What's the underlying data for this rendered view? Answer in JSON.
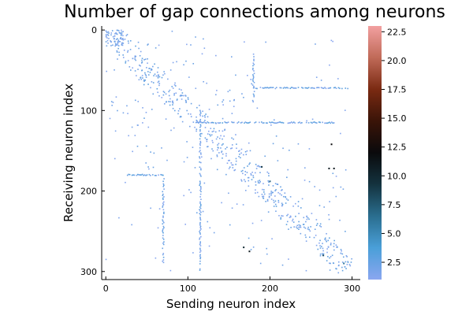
{
  "chart_data": {
    "type": "heatmap",
    "title": "Number of gap connections among neurons",
    "xlabel": "Sending neuron index",
    "ylabel": "Receiving neuron index",
    "xlim": [
      -5,
      310
    ],
    "ylim": [
      310,
      -5
    ],
    "x_ticks": [
      0,
      100,
      200,
      300
    ],
    "y_ticks": [
      0,
      100,
      200,
      300
    ],
    "x_tick_labels": [
      "0",
      "100",
      "200",
      "300"
    ],
    "y_tick_labels": [
      "0",
      "100",
      "200",
      "300"
    ],
    "colorbar": {
      "min": 1,
      "max": 23,
      "ticks": [
        2.5,
        5.0,
        7.5,
        10.0,
        12.5,
        15.0,
        17.5,
        20.0,
        22.5
      ],
      "tick_labels": [
        "2.5",
        "5.0",
        "7.5",
        "10.0",
        "12.5",
        "15.0",
        "17.5",
        "20.0",
        "22.5"
      ],
      "colors": [
        "#8aa6f0",
        "#4a9fd8",
        "#2a6e8f",
        "#14333f",
        "#0a0a0c",
        "#3a1408",
        "#7a2a12",
        "#c06a58",
        "#f2a0a0"
      ]
    },
    "grid": false,
    "features": {
      "diagonal_dense": [
        [
          0,
          0
        ],
        [
          10,
          8
        ],
        [
          20,
          18
        ],
        [
          40,
          38
        ],
        [
          60,
          58
        ],
        [
          80,
          80
        ],
        [
          100,
          100
        ],
        [
          120,
          122
        ],
        [
          140,
          140
        ],
        [
          160,
          160
        ],
        [
          175,
          180
        ],
        [
          190,
          190
        ],
        [
          210,
          205
        ],
        [
          230,
          225
        ],
        [
          250,
          245
        ],
        [
          270,
          265
        ],
        [
          290,
          290
        ],
        [
          300,
          300
        ]
      ],
      "horizontal_bands": [
        {
          "y": 72,
          "x_from": 180,
          "x_to": 295
        },
        {
          "y": 115,
          "x_from": 110,
          "x_to": 280
        },
        {
          "y": 180,
          "x_from": 25,
          "x_to": 70
        }
      ],
      "vertical_bands": [
        {
          "x": 70,
          "y_from": 180,
          "y_to": 290
        },
        {
          "x": 115,
          "y_from": 100,
          "y_to": 300
        },
        {
          "x": 180,
          "y_from": 30,
          "y_to": 90
        }
      ],
      "strong_points": [
        {
          "x": 275,
          "y": 142,
          "value": 12
        },
        {
          "x": 272,
          "y": 172,
          "value": 11
        },
        {
          "x": 278,
          "y": 172,
          "value": 11
        },
        {
          "x": 190,
          "y": 170,
          "value": 9
        },
        {
          "x": 168,
          "y": 270,
          "value": 10
        },
        {
          "x": 175,
          "y": 275,
          "value": 11
        },
        {
          "x": 200,
          "y": 188,
          "value": 7
        },
        {
          "x": 265,
          "y": 280,
          "value": 8
        },
        {
          "x": 290,
          "y": 290,
          "value": 6
        }
      ]
    }
  }
}
